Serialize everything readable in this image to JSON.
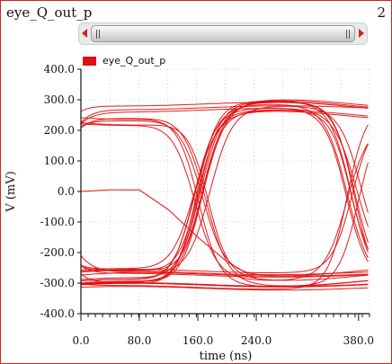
{
  "window": {
    "title": "eye_Q_out_p",
    "number": "2"
  },
  "colors": {
    "trace": "#e01010",
    "frame": "#c62828"
  },
  "chart_data": {
    "type": "line",
    "title": "",
    "xlabel": "time (ns)",
    "ylabel": "V (mV)",
    "xlim": [
      0,
      395
    ],
    "ylim": [
      -400,
      400
    ],
    "xticks": [
      0,
      80,
      160,
      240,
      380
    ],
    "xtick_labels": [
      "0.0",
      "80.0",
      "160.0",
      "240.0",
      "380.0"
    ],
    "yticks": [
      400,
      300,
      200,
      100,
      0,
      -100,
      -200,
      -300,
      -400
    ],
    "ytick_labels": [
      "400.0",
      "300.0",
      "200.0",
      "100.0",
      "0.0",
      "-100.0",
      "-200.0",
      "-300.0",
      "-400.0"
    ],
    "grid": true,
    "legend": {
      "position": "top-left",
      "entries": [
        "eye_Q_out_p"
      ]
    },
    "series": [
      {
        "name": "eye_Q_out_p",
        "style": "eye diagram (overlaid traces)",
        "levels_mV": [
          -290,
          260
        ],
        "crossings_ns": [
          165,
          375
        ],
        "startup_trace": {
          "x": [
            0,
            40,
            80,
            120,
            160,
            200,
            240
          ],
          "y": [
            0,
            5,
            5,
            -60,
            -150,
            -230,
            -285
          ]
        }
      }
    ]
  }
}
